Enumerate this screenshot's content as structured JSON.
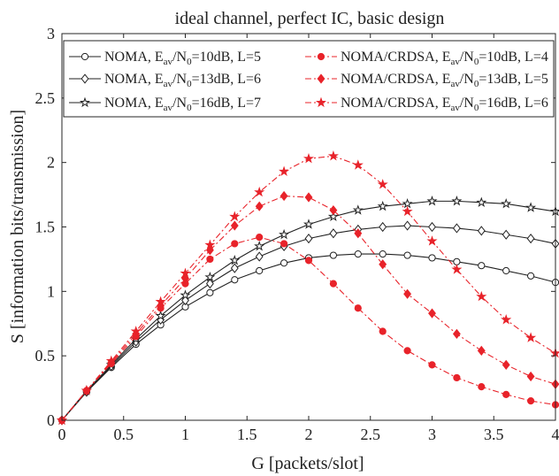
{
  "chart_data": {
    "type": "line",
    "title": "ideal channel, perfect IC, basic design",
    "xlabel": "G [packets/slot]",
    "ylabel": "S [information bits/transmission]",
    "xlim": [
      0,
      4
    ],
    "ylim": [
      0,
      3
    ],
    "xticks": [
      0,
      0.5,
      1,
      1.5,
      2,
      2.5,
      3,
      3.5,
      4
    ],
    "yticks": [
      0,
      0.5,
      1,
      1.5,
      2,
      2.5,
      3
    ],
    "grid": false,
    "legend_position": "top",
    "x": [
      0,
      0.2,
      0.4,
      0.6,
      0.8,
      1.0,
      1.2,
      1.4,
      1.6,
      1.8,
      2.0,
      2.2,
      2.4,
      2.6,
      2.8,
      3.0,
      3.2,
      3.4,
      3.6,
      3.8,
      4.0
    ],
    "series": [
      {
        "name": "NOMA, Eav/N0=10dB, L=5",
        "legend": {
          "pre": "NOMA, E",
          "sub1": "av",
          "mid": "/N",
          "sub2": "0",
          "post": "=10dB, L=5"
        },
        "color": "#222222",
        "dash": "solid",
        "marker": "circle",
        "values": [
          0,
          0.22,
          0.41,
          0.59,
          0.74,
          0.88,
          0.99,
          1.09,
          1.16,
          1.22,
          1.26,
          1.28,
          1.29,
          1.29,
          1.28,
          1.26,
          1.23,
          1.2,
          1.16,
          1.12,
          1.07
        ]
      },
      {
        "name": "NOMA, Eav/N0=13dB, L=6",
        "legend": {
          "pre": "NOMA, E",
          "sub1": "av",
          "mid": "/N",
          "sub2": "0",
          "post": "=13dB, L=6"
        },
        "color": "#222222",
        "dash": "solid",
        "marker": "diamond",
        "values": [
          0,
          0.22,
          0.42,
          0.61,
          0.78,
          0.93,
          1.06,
          1.18,
          1.27,
          1.35,
          1.41,
          1.45,
          1.48,
          1.5,
          1.51,
          1.5,
          1.49,
          1.47,
          1.44,
          1.41,
          1.37
        ]
      },
      {
        "name": "NOMA, Eav/N0=16dB, L=7",
        "legend": {
          "pre": "NOMA, E",
          "sub1": "av",
          "mid": "/N",
          "sub2": "0",
          "post": "=16dB, L=7"
        },
        "color": "#222222",
        "dash": "solid",
        "marker": "star",
        "values": [
          0,
          0.23,
          0.43,
          0.63,
          0.81,
          0.97,
          1.11,
          1.24,
          1.35,
          1.44,
          1.52,
          1.58,
          1.63,
          1.66,
          1.68,
          1.7,
          1.7,
          1.69,
          1.68,
          1.65,
          1.62
        ]
      },
      {
        "name": "NOMA/CRDSA, Eav/N0=10dB, L=4",
        "legend": {
          "pre": "NOMA/CRDSA, E",
          "sub1": "av",
          "mid": "/N",
          "sub2": "0",
          "post": "=10dB, L=4"
        },
        "color": "#e8232a",
        "dash": "dashdot",
        "marker": "circle-filled",
        "values": [
          0,
          0.23,
          0.44,
          0.65,
          0.87,
          1.06,
          1.25,
          1.37,
          1.42,
          1.37,
          1.24,
          1.06,
          0.87,
          0.69,
          0.54,
          0.43,
          0.33,
          0.26,
          0.2,
          0.15,
          0.12
        ]
      },
      {
        "name": "NOMA/CRDSA, Eav/N0=13dB, L=5",
        "legend": {
          "pre": "NOMA/CRDSA, E",
          "sub1": "av",
          "mid": "/N",
          "sub2": "0",
          "post": "=13dB, L=5"
        },
        "color": "#e8232a",
        "dash": "dashdot",
        "marker": "diamond-filled",
        "values": [
          0,
          0.23,
          0.45,
          0.67,
          0.89,
          1.1,
          1.32,
          1.51,
          1.66,
          1.74,
          1.73,
          1.63,
          1.45,
          1.21,
          0.98,
          0.83,
          0.67,
          0.54,
          0.43,
          0.34,
          0.28
        ]
      },
      {
        "name": "NOMA/CRDSA, Eav/N0=16dB, L=6",
        "legend": {
          "pre": "NOMA/CRDSA, E",
          "sub1": "av",
          "mid": "/N",
          "sub2": "0",
          "post": "=16dB, L=6"
        },
        "color": "#e8232a",
        "dash": "dashdot",
        "marker": "star-filled",
        "values": [
          0,
          0.23,
          0.46,
          0.69,
          0.92,
          1.14,
          1.36,
          1.58,
          1.77,
          1.93,
          2.03,
          2.05,
          1.98,
          1.83,
          1.62,
          1.39,
          1.17,
          0.96,
          0.78,
          0.64,
          0.52
        ]
      }
    ]
  }
}
